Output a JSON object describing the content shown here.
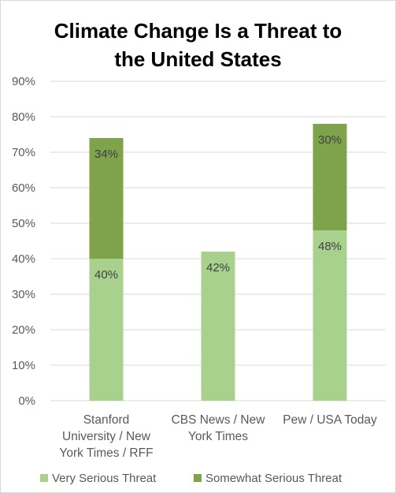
{
  "chart_data": {
    "type": "bar",
    "stacked": true,
    "title": "Climate Change Is a Threat to the United States",
    "title_lines": [
      "Climate Change Is a Threat to",
      "the United States"
    ],
    "categories": [
      [
        "Stanford",
        "University / New",
        "York Times / RFF"
      ],
      [
        "CBS News / New",
        "York Times"
      ],
      [
        "Pew / USA Today"
      ]
    ],
    "series": [
      {
        "name": "Very Serious Threat",
        "color": "#a9d18e",
        "values": [
          40,
          42,
          48
        ],
        "labels": [
          "40%",
          "42%",
          "48%"
        ]
      },
      {
        "name": "Somewhat Serious Threat",
        "color": "#7fa34a",
        "values": [
          34,
          null,
          30
        ],
        "labels": [
          "34%",
          "",
          "30%"
        ]
      }
    ],
    "ylim": [
      0,
      90
    ],
    "y_ticks": [
      0,
      10,
      20,
      30,
      40,
      50,
      60,
      70,
      80,
      90
    ],
    "y_tick_labels": [
      "0%",
      "10%",
      "20%",
      "30%",
      "40%",
      "50%",
      "60%",
      "70%",
      "80%",
      "90%"
    ],
    "grid": true,
    "grid_color": "#d9d9d9",
    "legend_position": "bottom",
    "xlabel": "",
    "ylabel": ""
  }
}
